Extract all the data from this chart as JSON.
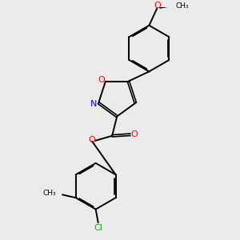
{
  "background_color": "#ebebeb",
  "bond_color": "#000000",
  "atom_colors": {
    "O": "#ff0000",
    "N": "#0000ff",
    "Cl": "#00bb00",
    "C": "#000000"
  },
  "figsize": [
    3.0,
    3.0
  ],
  "dpi": 100
}
